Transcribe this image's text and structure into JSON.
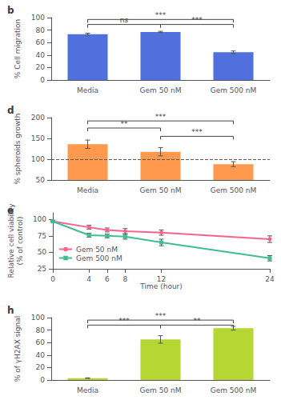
{
  "chart_data": [
    {
      "type": "bar",
      "title": "b",
      "categories": [
        "Media",
        "Gem 50 nM",
        "Gem 500 nM"
      ],
      "values": [
        73.5,
        77.0,
        44.5
      ],
      "errors": [
        1.5,
        1.0,
        2.0
      ],
      "ylabel": "% Cell migration",
      "ylim": [
        0,
        100
      ],
      "yticks": [
        0,
        20,
        40,
        60,
        80,
        100
      ],
      "grid": false,
      "annotations": [
        {
          "from": "Media",
          "to": "Gem 50 nM",
          "y": 89,
          "label": "ns"
        },
        {
          "from": "Media",
          "to": "Gem 500 nM",
          "y": 97,
          "label": "***"
        },
        {
          "from": "Gem 50 nM",
          "to": "Gem 500 nM",
          "y": 89,
          "label": "***"
        }
      ]
    },
    {
      "type": "bar",
      "title": "d",
      "categories": [
        "Media",
        "Gem 50 nM",
        "Gem 500 nM"
      ],
      "values": [
        136,
        118,
        88
      ],
      "errors": [
        10,
        10,
        6
      ],
      "reference_line": 100,
      "ylabel": "% spheroids growth",
      "ylim": [
        50,
        200
      ],
      "yticks": [
        50,
        100,
        150,
        200
      ],
      "grid": false,
      "annotations": [
        {
          "from": "Media",
          "to": "Gem 50 nM",
          "y": 175,
          "label": "**"
        },
        {
          "from": "Media",
          "to": "Gem 500 nM",
          "y": 192,
          "label": "***"
        },
        {
          "from": "Gem 50 nM",
          "to": "Gem 500 nM",
          "y": 155,
          "label": "***"
        }
      ]
    },
    {
      "type": "line",
      "title": "e",
      "x": [
        0,
        4,
        6,
        8,
        12,
        24
      ],
      "series": [
        {
          "name": "Gem 50 nM",
          "marker": "circle",
          "values": [
            97,
            88,
            84,
            82,
            80,
            70
          ],
          "errors": [
            1,
            3,
            3,
            4,
            4,
            5
          ]
        },
        {
          "name": "Gem 500 nM",
          "marker": "square",
          "values": [
            97,
            76,
            75,
            74,
            65,
            41
          ],
          "errors": [
            1,
            3,
            3,
            4,
            5,
            4
          ]
        }
      ],
      "xlabel": "Time (hour)",
      "ylabel": "Relative cell viability\n(% of control)",
      "xlim": [
        0,
        24
      ],
      "xticks": [
        0,
        4,
        6,
        8,
        12,
        24
      ],
      "ylim": [
        25,
        110
      ],
      "yticks": [
        25,
        50,
        75,
        100
      ],
      "legend": "lower left",
      "grid": false
    },
    {
      "type": "bar",
      "title": "h",
      "categories": [
        "Media",
        "Gem 50 nM",
        "Gem 500 nM"
      ],
      "values": [
        3.0,
        65,
        83
      ],
      "errors": [
        0.5,
        6,
        3
      ],
      "ylabel": "% of γH2AX signal",
      "ylim": [
        0,
        100
      ],
      "yticks": [
        0,
        20,
        40,
        60,
        80,
        100
      ],
      "grid": false,
      "annotations": [
        {
          "from": "Media",
          "to": "Gem 50 nM",
          "y": 88,
          "label": "***"
        },
        {
          "from": "Media",
          "to": "Gem 500 nM",
          "y": 96,
          "label": "***"
        },
        {
          "from": "Gem 50 nM",
          "to": "Gem 500 nM",
          "y": 88,
          "label": "**"
        }
      ]
    }
  ]
}
